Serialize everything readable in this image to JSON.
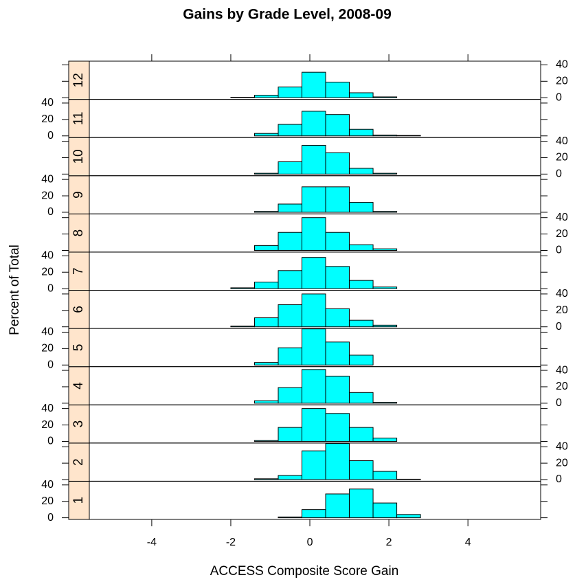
{
  "chart_data": {
    "type": "histogram",
    "title": "Gains by Grade Level, 2008-09",
    "xlabel": "ACCESS Composite Score Gain",
    "ylabel": "Percent of Total",
    "bins": [
      -5,
      -4.4,
      -3.8,
      -3.2,
      -2.6,
      -2,
      -1.4,
      -0.8,
      -0.2,
      0.4,
      1,
      1.6,
      2.2,
      2.8,
      3.4,
      4,
      4.6,
      5.2
    ],
    "xlim": [
      -5.58,
      5.84
    ],
    "xticks": [
      -4,
      -2,
      0,
      2,
      4
    ],
    "ylim": [
      -2,
      44.5
    ],
    "yticks": [
      0,
      20,
      40
    ],
    "color": "#00ffff",
    "strip_color": "#ffe5cc",
    "panels": [
      {
        "name": "1",
        "values": [
          0,
          0,
          0,
          0,
          0,
          0,
          0,
          1,
          10,
          29,
          35,
          18,
          4,
          0,
          0,
          0,
          0
        ]
      },
      {
        "name": "2",
        "values": [
          0,
          0,
          0,
          0,
          0,
          0,
          1,
          5,
          35,
          44,
          23,
          10,
          0.5,
          0,
          0,
          0,
          0
        ]
      },
      {
        "name": "3",
        "values": [
          0,
          0,
          0,
          0,
          0,
          0,
          1,
          17,
          40,
          34,
          17,
          4,
          0,
          0,
          0,
          0,
          0
        ]
      },
      {
        "name": "4",
        "values": [
          0,
          0,
          0,
          0,
          0,
          0,
          3,
          19,
          41,
          33,
          13,
          1,
          0,
          0,
          0,
          0,
          0
        ]
      },
      {
        "name": "5",
        "values": [
          0,
          0,
          0,
          0,
          0,
          0,
          3,
          21,
          44,
          28,
          12,
          0,
          0,
          0,
          0,
          0,
          0
        ]
      },
      {
        "name": "6",
        "values": [
          0,
          0,
          0,
          0,
          0,
          1,
          11,
          27,
          40,
          22,
          8,
          2,
          0,
          0,
          0,
          0,
          0
        ]
      },
      {
        "name": "7",
        "values": [
          0,
          0,
          0,
          0,
          0,
          1,
          8,
          22,
          38,
          27,
          10,
          2,
          0,
          0,
          0,
          0,
          0
        ]
      },
      {
        "name": "8",
        "values": [
          0,
          0,
          0,
          0,
          0,
          0,
          6,
          22,
          40,
          22,
          7,
          2,
          0,
          0,
          0,
          0,
          0
        ]
      },
      {
        "name": "9",
        "values": [
          0,
          0,
          0,
          0,
          0,
          0,
          1,
          10,
          31,
          31,
          12,
          1,
          0,
          0,
          0,
          0,
          0
        ]
      },
      {
        "name": "10",
        "values": [
          0,
          0,
          0,
          0,
          0,
          0,
          1,
          15,
          35,
          26,
          7,
          1,
          0,
          0,
          0,
          0,
          0
        ]
      },
      {
        "name": "11",
        "values": [
          0,
          0,
          0,
          0,
          0,
          0,
          3,
          14,
          30,
          26,
          8,
          1,
          0.5,
          0,
          0,
          0,
          0
        ]
      },
      {
        "name": "12",
        "values": [
          0,
          0,
          0,
          0,
          0,
          0.5,
          3,
          13,
          31,
          19,
          6,
          1,
          0,
          0,
          0,
          0,
          0
        ]
      }
    ]
  }
}
